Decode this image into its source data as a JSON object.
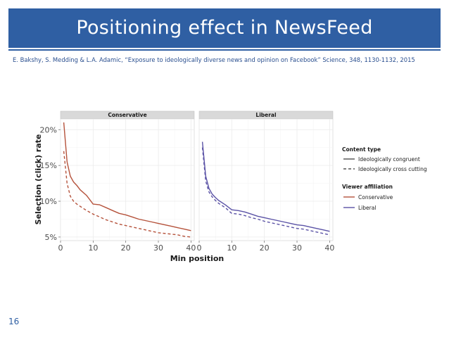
{
  "slide": {
    "title": "Positioning effect in NewsFeed",
    "citation": "E. Bakshy, S. Medding & L.A. Adamic, “Exposure to ideologically diverse news and opinion on Facebook” Science, 348, 1130-1132, 2015",
    "page_number": "16"
  },
  "colors": {
    "title_bar": "#2f5fa3",
    "conservative": "#b5523b",
    "liberal": "#5b53a6",
    "panel_bg": "#ffffff",
    "strip_bg": "#d9d9d9",
    "grid": "#ebebeb"
  },
  "chart_data": {
    "type": "line",
    "xlabel": "Min position",
    "ylabel": "Selection (click) rate",
    "xlim": [
      0,
      41
    ],
    "ylim": [
      0.045,
      0.215
    ],
    "x_ticks": [
      0,
      10,
      20,
      30,
      40
    ],
    "y_ticks": [
      0.05,
      0.1,
      0.15,
      0.2
    ],
    "y_tick_labels": [
      "5%",
      "10%",
      "15%",
      "20%"
    ],
    "x_tick_labels": [
      "0",
      "10",
      "20",
      "30",
      "40"
    ],
    "grid": true,
    "legend_position": "right",
    "legend": {
      "content_type_title": "Content type",
      "content_type_items": [
        "Ideologically congruent",
        "Ideologically cross cutting"
      ],
      "viewer_affiliation_title": "Viewer affiliation",
      "viewer_affiliation_items": [
        "Conservative",
        "Liberal"
      ]
    },
    "panels": [
      {
        "title": "Conservative",
        "color_key": "conservative",
        "series": [
          {
            "name": "Ideologically congruent",
            "dash": "solid",
            "x": [
              1,
              2,
              3,
              4,
              5,
              6,
              8,
              10,
              12,
              14,
              16,
              18,
              20,
              22,
              24,
              26,
              28,
              30,
              32,
              34,
              36,
              38,
              40
            ],
            "values": [
              0.21,
              0.155,
              0.135,
              0.127,
              0.122,
              0.116,
              0.108,
              0.096,
              0.095,
              0.091,
              0.087,
              0.083,
              0.081,
              0.078,
              0.075,
              0.073,
              0.071,
              0.069,
              0.067,
              0.065,
              0.063,
              0.061,
              0.059
            ]
          },
          {
            "name": "Ideologically cross cutting",
            "dash": "dashed",
            "x": [
              1,
              2,
              3,
              4,
              5,
              6,
              8,
              10,
              12,
              14,
              16,
              18,
              20,
              22,
              24,
              26,
              28,
              30,
              32,
              34,
              36,
              38,
              40
            ],
            "values": [
              0.17,
              0.125,
              0.107,
              0.1,
              0.096,
              0.093,
              0.087,
              0.082,
              0.078,
              0.074,
              0.071,
              0.068,
              0.066,
              0.064,
              0.062,
              0.06,
              0.058,
              0.056,
              0.055,
              0.054,
              0.053,
              0.051,
              0.05
            ]
          }
        ]
      },
      {
        "title": "Liberal",
        "color_key": "liberal",
        "series": [
          {
            "name": "Ideologically congruent",
            "dash": "solid",
            "x": [
              1,
              2,
              3,
              4,
              5,
              6,
              8,
              10,
              12,
              14,
              16,
              18,
              20,
              22,
              24,
              26,
              28,
              30,
              32,
              34,
              36,
              38,
              40
            ],
            "values": [
              0.183,
              0.135,
              0.118,
              0.11,
              0.105,
              0.101,
              0.095,
              0.088,
              0.087,
              0.085,
              0.082,
              0.079,
              0.077,
              0.075,
              0.073,
              0.071,
              0.069,
              0.067,
              0.066,
              0.064,
              0.062,
              0.06,
              0.058
            ]
          },
          {
            "name": "Ideologically cross cutting",
            "dash": "dashed",
            "x": [
              1,
              2,
              3,
              4,
              5,
              6,
              8,
              10,
              12,
              14,
              16,
              18,
              20,
              22,
              24,
              26,
              28,
              30,
              32,
              34,
              36,
              38,
              40
            ],
            "values": [
              0.175,
              0.128,
              0.113,
              0.106,
              0.101,
              0.097,
              0.091,
              0.083,
              0.082,
              0.08,
              0.077,
              0.075,
              0.072,
              0.07,
              0.068,
              0.066,
              0.064,
              0.062,
              0.061,
              0.059,
              0.057,
              0.055,
              0.053
            ]
          }
        ]
      }
    ]
  }
}
